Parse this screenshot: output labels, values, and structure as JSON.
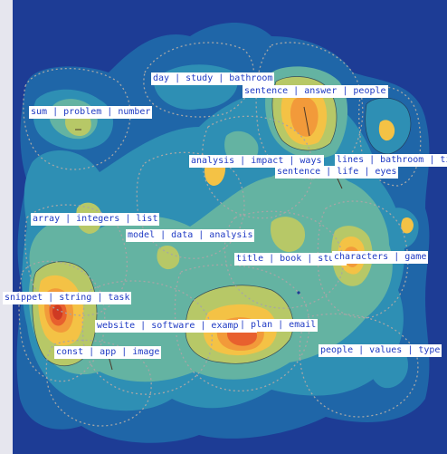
{
  "colors": {
    "background": "#1d3c95",
    "levels": [
      "#1d3c95",
      "#1f66a8",
      "#2e8fb4",
      "#64b3a2",
      "#b7c867",
      "#f4c245",
      "#f29a3a",
      "#e8602e",
      "#cf3a23"
    ],
    "label_text": "#1f3ac4",
    "label_bg": "#ffffff",
    "boundary": "#a6a6a6"
  },
  "labels": [
    {
      "id": "day-study-bathroom",
      "text": "day | study | bathroom"
    },
    {
      "id": "sentence-answer-people",
      "text": "sentence | answer | people"
    },
    {
      "id": "sum-problem-number",
      "text": "sum | problem | number"
    },
    {
      "id": "analysis-impact-ways",
      "text": "analysis | impact | ways"
    },
    {
      "id": "lines-bathroom-time",
      "text": "lines | bathroom | time"
    },
    {
      "id": "sentence-life-eyes",
      "text": "sentence | life | eyes"
    },
    {
      "id": "array-integers-list",
      "text": "array | integers | list"
    },
    {
      "id": "model-data-analysis",
      "text": "model | data | analysis"
    },
    {
      "id": "title-book-study",
      "text": "title | book | study"
    },
    {
      "id": "characters-game",
      "text": "characters | game"
    },
    {
      "id": "snippet-string-task",
      "text": "snippet | string | task"
    },
    {
      "id": "website-software-examples",
      "text": "website | software | examples"
    },
    {
      "id": "plan-email",
      "text": "| plan | email"
    },
    {
      "id": "const-app-image",
      "text": "const | app | image"
    },
    {
      "id": "people-values-type",
      "text": "people | values | type"
    }
  ]
}
